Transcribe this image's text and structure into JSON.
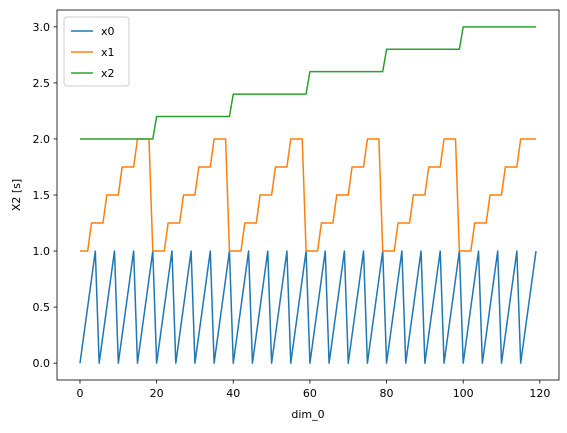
{
  "chart_data": {
    "type": "line",
    "xlabel": "dim_0",
    "ylabel": "X2 [s]",
    "xlim": [
      -6,
      125
    ],
    "ylim": [
      -0.15,
      3.15
    ],
    "xticks": [
      0,
      20,
      40,
      60,
      80,
      100,
      120
    ],
    "yticks": [
      0.0,
      0.5,
      1.0,
      1.5,
      2.0,
      2.5,
      3.0
    ],
    "xtick_labels": [
      "0",
      "20",
      "40",
      "60",
      "80",
      "100",
      "120"
    ],
    "ytick_labels": [
      "0.0",
      "0.5",
      "1.0",
      "1.5",
      "2.0",
      "2.5",
      "3.0"
    ],
    "grid": false,
    "legend_position": "top-left",
    "x": [
      0,
      1,
      2,
      3,
      4,
      5,
      6,
      7,
      8,
      9,
      10,
      11,
      12,
      13,
      14,
      15,
      16,
      17,
      18,
      19,
      20,
      21,
      22,
      23,
      24,
      25,
      26,
      27,
      28,
      29,
      30,
      31,
      32,
      33,
      34,
      35,
      36,
      37,
      38,
      39,
      40,
      41,
      42,
      43,
      44,
      45,
      46,
      47,
      48,
      49,
      50,
      51,
      52,
      53,
      54,
      55,
      56,
      57,
      58,
      59,
      60,
      61,
      62,
      63,
      64,
      65,
      66,
      67,
      68,
      69,
      70,
      71,
      72,
      73,
      74,
      75,
      76,
      77,
      78,
      79,
      80,
      81,
      82,
      83,
      84,
      85,
      86,
      87,
      88,
      89,
      90,
      91,
      92,
      93,
      94,
      95,
      96,
      97,
      98,
      99,
      100,
      101,
      102,
      103,
      104,
      105,
      106,
      107,
      108,
      109,
      110,
      111,
      112,
      113,
      114,
      115,
      116,
      117,
      118,
      119
    ],
    "series": [
      {
        "name": "x0",
        "color": "#1f77b4",
        "values": [
          0,
          0.25,
          0.5,
          0.75,
          1,
          0,
          0.25,
          0.5,
          0.75,
          1,
          0,
          0.25,
          0.5,
          0.75,
          1,
          0,
          0.25,
          0.5,
          0.75,
          1,
          0,
          0.25,
          0.5,
          0.75,
          1,
          0,
          0.25,
          0.5,
          0.75,
          1,
          0,
          0.25,
          0.5,
          0.75,
          1,
          0,
          0.25,
          0.5,
          0.75,
          1,
          0,
          0.25,
          0.5,
          0.75,
          1,
          0,
          0.25,
          0.5,
          0.75,
          1,
          0,
          0.25,
          0.5,
          0.75,
          1,
          0,
          0.25,
          0.5,
          0.75,
          1,
          0,
          0.25,
          0.5,
          0.75,
          1,
          0,
          0.25,
          0.5,
          0.75,
          1,
          0,
          0.25,
          0.5,
          0.75,
          1,
          0,
          0.25,
          0.5,
          0.75,
          1,
          0,
          0.25,
          0.5,
          0.75,
          1,
          0,
          0.25,
          0.5,
          0.75,
          1,
          0,
          0.25,
          0.5,
          0.75,
          1,
          0,
          0.25,
          0.5,
          0.75,
          1,
          0,
          0.25,
          0.5,
          0.75,
          1,
          0,
          0.25,
          0.5,
          0.75,
          1,
          0,
          0.25,
          0.5,
          0.75,
          1,
          0,
          0.25,
          0.5,
          0.75,
          1
        ]
      },
      {
        "name": "x1",
        "color": "#ff7f0e",
        "values": [
          1,
          1,
          1,
          1.25,
          1.25,
          1.25,
          1.25,
          1.5,
          1.5,
          1.5,
          1.5,
          1.75,
          1.75,
          1.75,
          1.75,
          2,
          2,
          2,
          2,
          1,
          1,
          1,
          1,
          1.25,
          1.25,
          1.25,
          1.25,
          1.5,
          1.5,
          1.5,
          1.5,
          1.75,
          1.75,
          1.75,
          1.75,
          2,
          2,
          2,
          2,
          1,
          1,
          1,
          1,
          1.25,
          1.25,
          1.25,
          1.25,
          1.5,
          1.5,
          1.5,
          1.5,
          1.75,
          1.75,
          1.75,
          1.75,
          2,
          2,
          2,
          2,
          1,
          1,
          1,
          1,
          1.25,
          1.25,
          1.25,
          1.25,
          1.5,
          1.5,
          1.5,
          1.5,
          1.75,
          1.75,
          1.75,
          1.75,
          2,
          2,
          2,
          2,
          1,
          1,
          1,
          1,
          1.25,
          1.25,
          1.25,
          1.25,
          1.5,
          1.5,
          1.5,
          1.5,
          1.75,
          1.75,
          1.75,
          1.75,
          2,
          2,
          2,
          2,
          1,
          1,
          1,
          1,
          1.25,
          1.25,
          1.25,
          1.25,
          1.5,
          1.5,
          1.5,
          1.5,
          1.75,
          1.75,
          1.75,
          1.75,
          2,
          2,
          2,
          2,
          2
        ]
      },
      {
        "name": "x2",
        "color": "#2ca02c",
        "values": [
          2,
          2,
          2,
          2,
          2,
          2,
          2,
          2,
          2,
          2,
          2,
          2,
          2,
          2,
          2,
          2,
          2,
          2,
          2,
          2,
          2.2,
          2.2,
          2.2,
          2.2,
          2.2,
          2.2,
          2.2,
          2.2,
          2.2,
          2.2,
          2.2,
          2.2,
          2.2,
          2.2,
          2.2,
          2.2,
          2.2,
          2.2,
          2.2,
          2.2,
          2.4,
          2.4,
          2.4,
          2.4,
          2.4,
          2.4,
          2.4,
          2.4,
          2.4,
          2.4,
          2.4,
          2.4,
          2.4,
          2.4,
          2.4,
          2.4,
          2.4,
          2.4,
          2.4,
          2.4,
          2.6,
          2.6,
          2.6,
          2.6,
          2.6,
          2.6,
          2.6,
          2.6,
          2.6,
          2.6,
          2.6,
          2.6,
          2.6,
          2.6,
          2.6,
          2.6,
          2.6,
          2.6,
          2.6,
          2.6,
          2.8,
          2.8,
          2.8,
          2.8,
          2.8,
          2.8,
          2.8,
          2.8,
          2.8,
          2.8,
          2.8,
          2.8,
          2.8,
          2.8,
          2.8,
          2.8,
          2.8,
          2.8,
          2.8,
          2.8,
          3,
          3,
          3,
          3,
          3,
          3,
          3,
          3,
          3,
          3,
          3,
          3,
          3,
          3,
          3,
          3,
          3,
          3,
          3,
          3
        ]
      }
    ]
  }
}
